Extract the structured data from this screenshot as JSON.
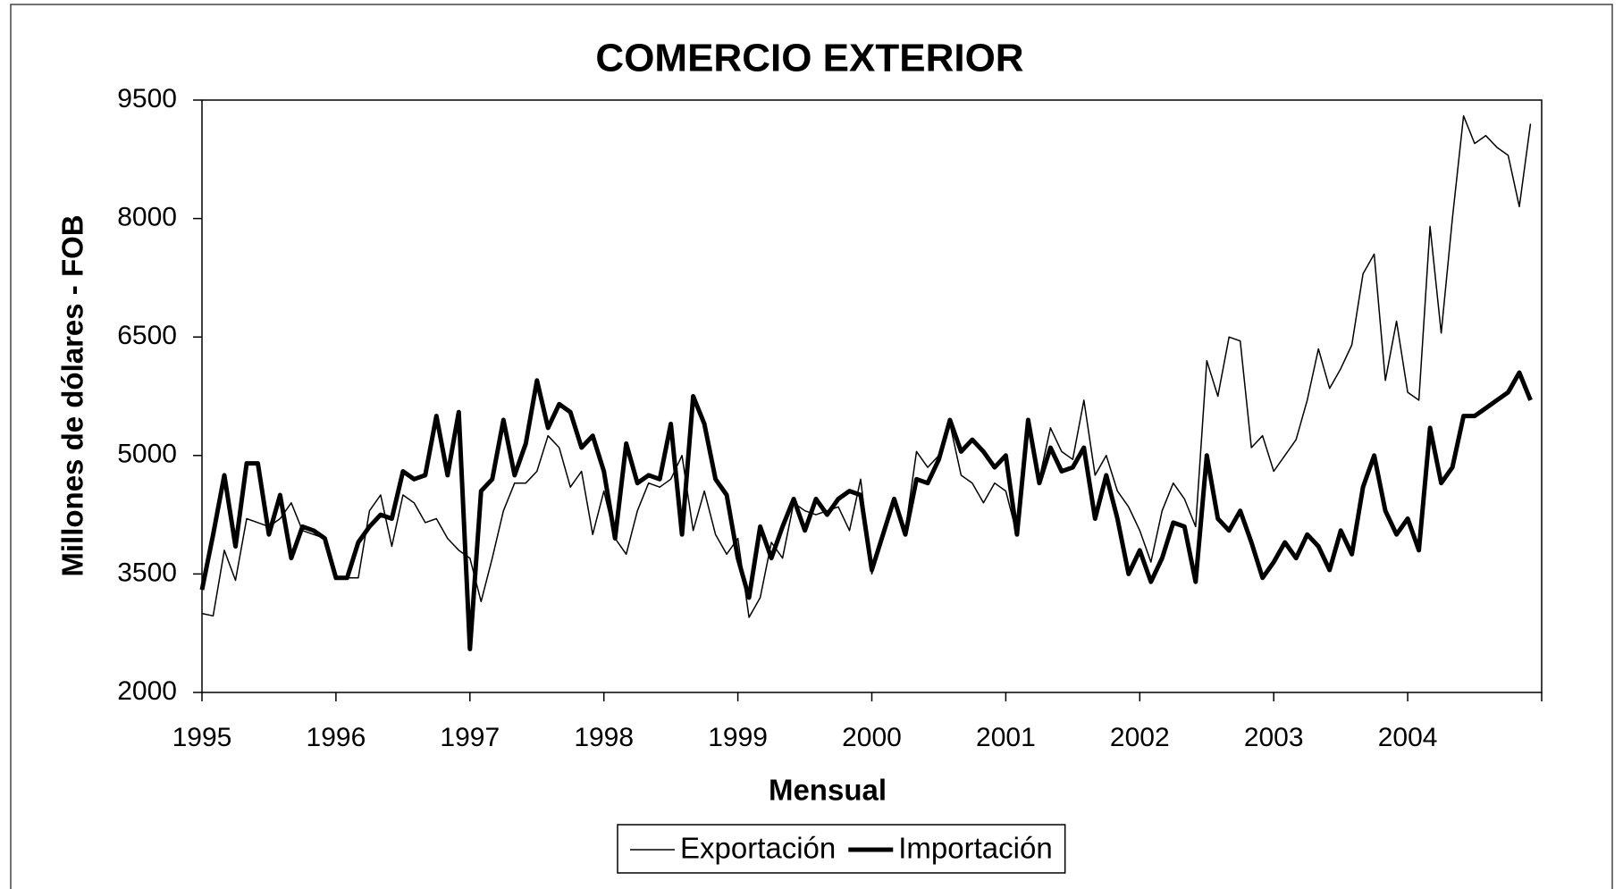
{
  "chart_data": {
    "type": "line",
    "title": "COMERCIO EXTERIOR",
    "x_label": "Mensual",
    "y_label": "Millones de dólares - FOB",
    "categories": [
      "1995",
      null,
      null,
      null,
      null,
      null,
      null,
      null,
      null,
      null,
      null,
      null,
      "1996",
      null,
      null,
      null,
      null,
      null,
      null,
      null,
      null,
      null,
      null,
      null,
      "1997",
      null,
      null,
      null,
      null,
      null,
      null,
      null,
      null,
      null,
      null,
      null,
      "1998",
      null,
      null,
      null,
      null,
      null,
      null,
      null,
      null,
      null,
      null,
      null,
      "1999",
      null,
      null,
      null,
      null,
      null,
      null,
      null,
      null,
      null,
      null,
      null,
      "2000",
      null,
      null,
      null,
      null,
      null,
      null,
      null,
      null,
      null,
      null,
      null,
      "2001",
      null,
      null,
      null,
      null,
      null,
      null,
      null,
      null,
      null,
      null,
      null,
      "2002",
      null,
      null,
      null,
      null,
      null,
      null,
      null,
      null,
      null,
      null,
      null,
      "2003",
      null,
      null,
      null,
      null,
      null,
      null,
      null,
      null,
      null,
      null,
      null,
      "2004",
      null,
      null,
      null,
      null,
      null,
      null,
      null,
      null,
      null,
      null,
      null
    ],
    "series": [
      {
        "name": "Exportación",
        "color": "#000000",
        "line_width": 1.5,
        "values": [
          3000,
          2970,
          3800,
          3420,
          4200,
          4150,
          4100,
          4200,
          4400,
          4050,
          4000,
          3950,
          3450,
          3450,
          3450,
          4300,
          4500,
          3850,
          4500,
          4400,
          4150,
          4200,
          3950,
          3800,
          3700,
          3150,
          3700,
          4300,
          4650,
          4650,
          4800,
          5250,
          5100,
          4600,
          4800,
          4000,
          4550,
          3950,
          3750,
          4300,
          4650,
          4600,
          4700,
          5000,
          4050,
          4550,
          4000,
          3750,
          3950,
          2950,
          3200,
          3900,
          3700,
          4400,
          4300,
          4250,
          4300,
          4350,
          4050,
          4700,
          3500,
          4000,
          4450,
          4050,
          5050,
          4850,
          5000,
          5400,
          4750,
          4650,
          4400,
          4650,
          4550,
          4000,
          5400,
          4700,
          5350,
          5050,
          4950,
          5700,
          4750,
          5000,
          4550,
          4350,
          4050,
          3650,
          4300,
          4650,
          4450,
          4100,
          6200,
          5750,
          6500,
          6450,
          5100,
          5250,
          4800,
          5000,
          5200,
          5700,
          6350,
          5850,
          6100,
          6400,
          7300,
          7550,
          5950,
          6700,
          5800,
          5700,
          7900,
          6550,
          8000,
          9300,
          8950,
          9050,
          8900,
          8800,
          8150,
          9200
        ]
      },
      {
        "name": "Importación",
        "color": "#000000",
        "line_width": 5,
        "values": [
          3300,
          4000,
          4750,
          3850,
          4900,
          4900,
          4000,
          4500,
          3700,
          4100,
          4050,
          3950,
          3450,
          3450,
          3900,
          4100,
          4250,
          4200,
          4800,
          4700,
          4750,
          5500,
          4750,
          5550,
          2550,
          4550,
          4700,
          5450,
          4750,
          5150,
          5950,
          5350,
          5650,
          5550,
          5100,
          5250,
          4800,
          3950,
          5150,
          4650,
          4750,
          4700,
          5400,
          4000,
          5750,
          5400,
          4700,
          4500,
          3700,
          3200,
          4100,
          3700,
          4100,
          4450,
          4050,
          4450,
          4250,
          4450,
          4550,
          4500,
          3550,
          4000,
          4450,
          4000,
          4700,
          4650,
          4950,
          5450,
          5050,
          5200,
          5050,
          4850,
          5000,
          4000,
          5450,
          4650,
          5100,
          4800,
          4850,
          5100,
          4200,
          4750,
          4200,
          3500,
          3800,
          3400,
          3700,
          4150,
          4100,
          3400,
          5000,
          4200,
          4050,
          4300,
          3900,
          3450,
          3650,
          3900,
          3700,
          4000,
          3850,
          3550,
          4050,
          3750,
          4600,
          5000,
          4300,
          4000,
          4200,
          3800,
          5350,
          4650,
          4850,
          5500,
          5500,
          5600,
          5700,
          5800,
          6050,
          5700
        ]
      }
    ],
    "ylim": [
      2000,
      9500
    ],
    "yticks": [
      2000,
      3500,
      5000,
      6500,
      8000,
      9500
    ],
    "grid": false,
    "legend": "bottom"
  }
}
